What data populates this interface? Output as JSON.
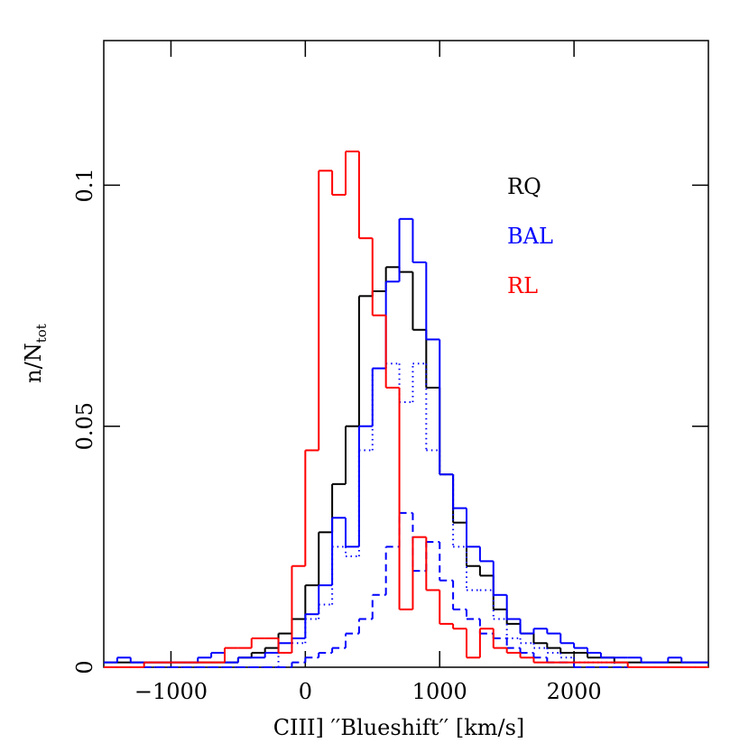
{
  "chart_data": {
    "type": "histogram",
    "xlabel": "CIII] ′′Blueshift′′ [km/s]",
    "ylabel": "n/N",
    "ylabel_subscript": "tot",
    "bins": [
      -1500,
      -1400,
      -1300,
      -1200,
      -1100,
      -1000,
      -900,
      -800,
      -700,
      -600,
      -500,
      -400,
      -300,
      -200,
      -100,
      0,
      100,
      200,
      300,
      400,
      500,
      600,
      700,
      800,
      900,
      1000,
      1100,
      1200,
      1300,
      1400,
      1500,
      1600,
      1700,
      1800,
      1900,
      2000,
      2100,
      2200,
      2300,
      2400,
      2500,
      2600,
      2700,
      2800,
      2900,
      3000
    ],
    "series": [
      {
        "name": "RQ",
        "color": "#000000",
        "linestyle": "solid",
        "values": [
          0.001,
          0.001,
          0.001,
          0.001,
          0.001,
          0.001,
          0.001,
          0.001,
          0.001,
          0.001,
          0.002,
          0.003,
          0.004,
          0.007,
          0.01,
          0.017,
          0.028,
          0.038,
          0.05,
          0.077,
          0.078,
          0.083,
          0.082,
          0.07,
          0.058,
          0.04,
          0.03,
          0.021,
          0.019,
          0.012,
          0.009,
          0.007,
          0.005,
          0.004,
          0.003,
          0.003,
          0.002,
          0.002,
          0.001,
          0.001,
          0.001,
          0.001,
          0.001,
          0.001,
          0.001
        ]
      },
      {
        "name": "BAL",
        "color": "#0000ff",
        "linestyle": "solid",
        "values": [
          0.001,
          0.002,
          0.001,
          0.001,
          0.001,
          0.001,
          0.001,
          0.002,
          0.003,
          0.001,
          0.002,
          0.002,
          0.003,
          0.005,
          0.006,
          0.011,
          0.017,
          0.031,
          0.025,
          0.05,
          0.062,
          0.08,
          0.093,
          0.084,
          0.068,
          0.04,
          0.033,
          0.025,
          0.022,
          0.015,
          0.01,
          0.007,
          0.008,
          0.007,
          0.005,
          0.004,
          0.003,
          0.002,
          0.002,
          0.002,
          0.001,
          0.001,
          0.002,
          0.001,
          0.001
        ]
      },
      {
        "color": "#0000ff",
        "linestyle": "dotted",
        "values": [
          0,
          0,
          0,
          0,
          0,
          0,
          0,
          0,
          0,
          0,
          0,
          0,
          0,
          0.003,
          0.005,
          0.01,
          0.013,
          0.025,
          0.023,
          0.045,
          0.062,
          0.063,
          0.055,
          0.063,
          0.045,
          0.04,
          0.025,
          0.016,
          0.016,
          0.01,
          0.006,
          0.005,
          0.004,
          0.003,
          0.002,
          0.001,
          0.001,
          0.001,
          0,
          0,
          0,
          0,
          0,
          0,
          0
        ]
      },
      {
        "color": "#0000ff",
        "linestyle": "dashed",
        "values": [
          0,
          0,
          0,
          0,
          0,
          0,
          0,
          0,
          0,
          0,
          0,
          0,
          0,
          0,
          0.001,
          0.002,
          0.003,
          0.004,
          0.007,
          0.01,
          0.015,
          0.025,
          0.032,
          0.02,
          0.026,
          0.018,
          0.012,
          0.01,
          0.007,
          0.006,
          0.004,
          0.003,
          0.002,
          0.001,
          0.001,
          0,
          0,
          0,
          0,
          0,
          0,
          0,
          0,
          0,
          0
        ]
      },
      {
        "name": "RL",
        "color": "#ff0000",
        "linestyle": "solid",
        "values": [
          0,
          0,
          0,
          0.001,
          0.001,
          0.001,
          0.001,
          0.001,
          0.001,
          0.004,
          0.004,
          0.006,
          0.006,
          0.003,
          0.021,
          0.045,
          0.103,
          0.098,
          0.107,
          0.089,
          0.073,
          0.058,
          0.012,
          0.027,
          0.016,
          0.009,
          0.008,
          0.002,
          0.008,
          0.004,
          0.003,
          0.002,
          0.001,
          0.001,
          0.001,
          0.001,
          0.001,
          0.001,
          0.001,
          0,
          0,
          0,
          0,
          0,
          0
        ]
      }
    ],
    "xlim": [
      -1500,
      3000
    ],
    "xticks": [
      {
        "value": -1000,
        "label": "−1000"
      },
      0,
      1000,
      2000
    ],
    "ylim": [
      0,
      0.13
    ],
    "yticks": [
      0,
      0.05,
      0.1
    ]
  }
}
